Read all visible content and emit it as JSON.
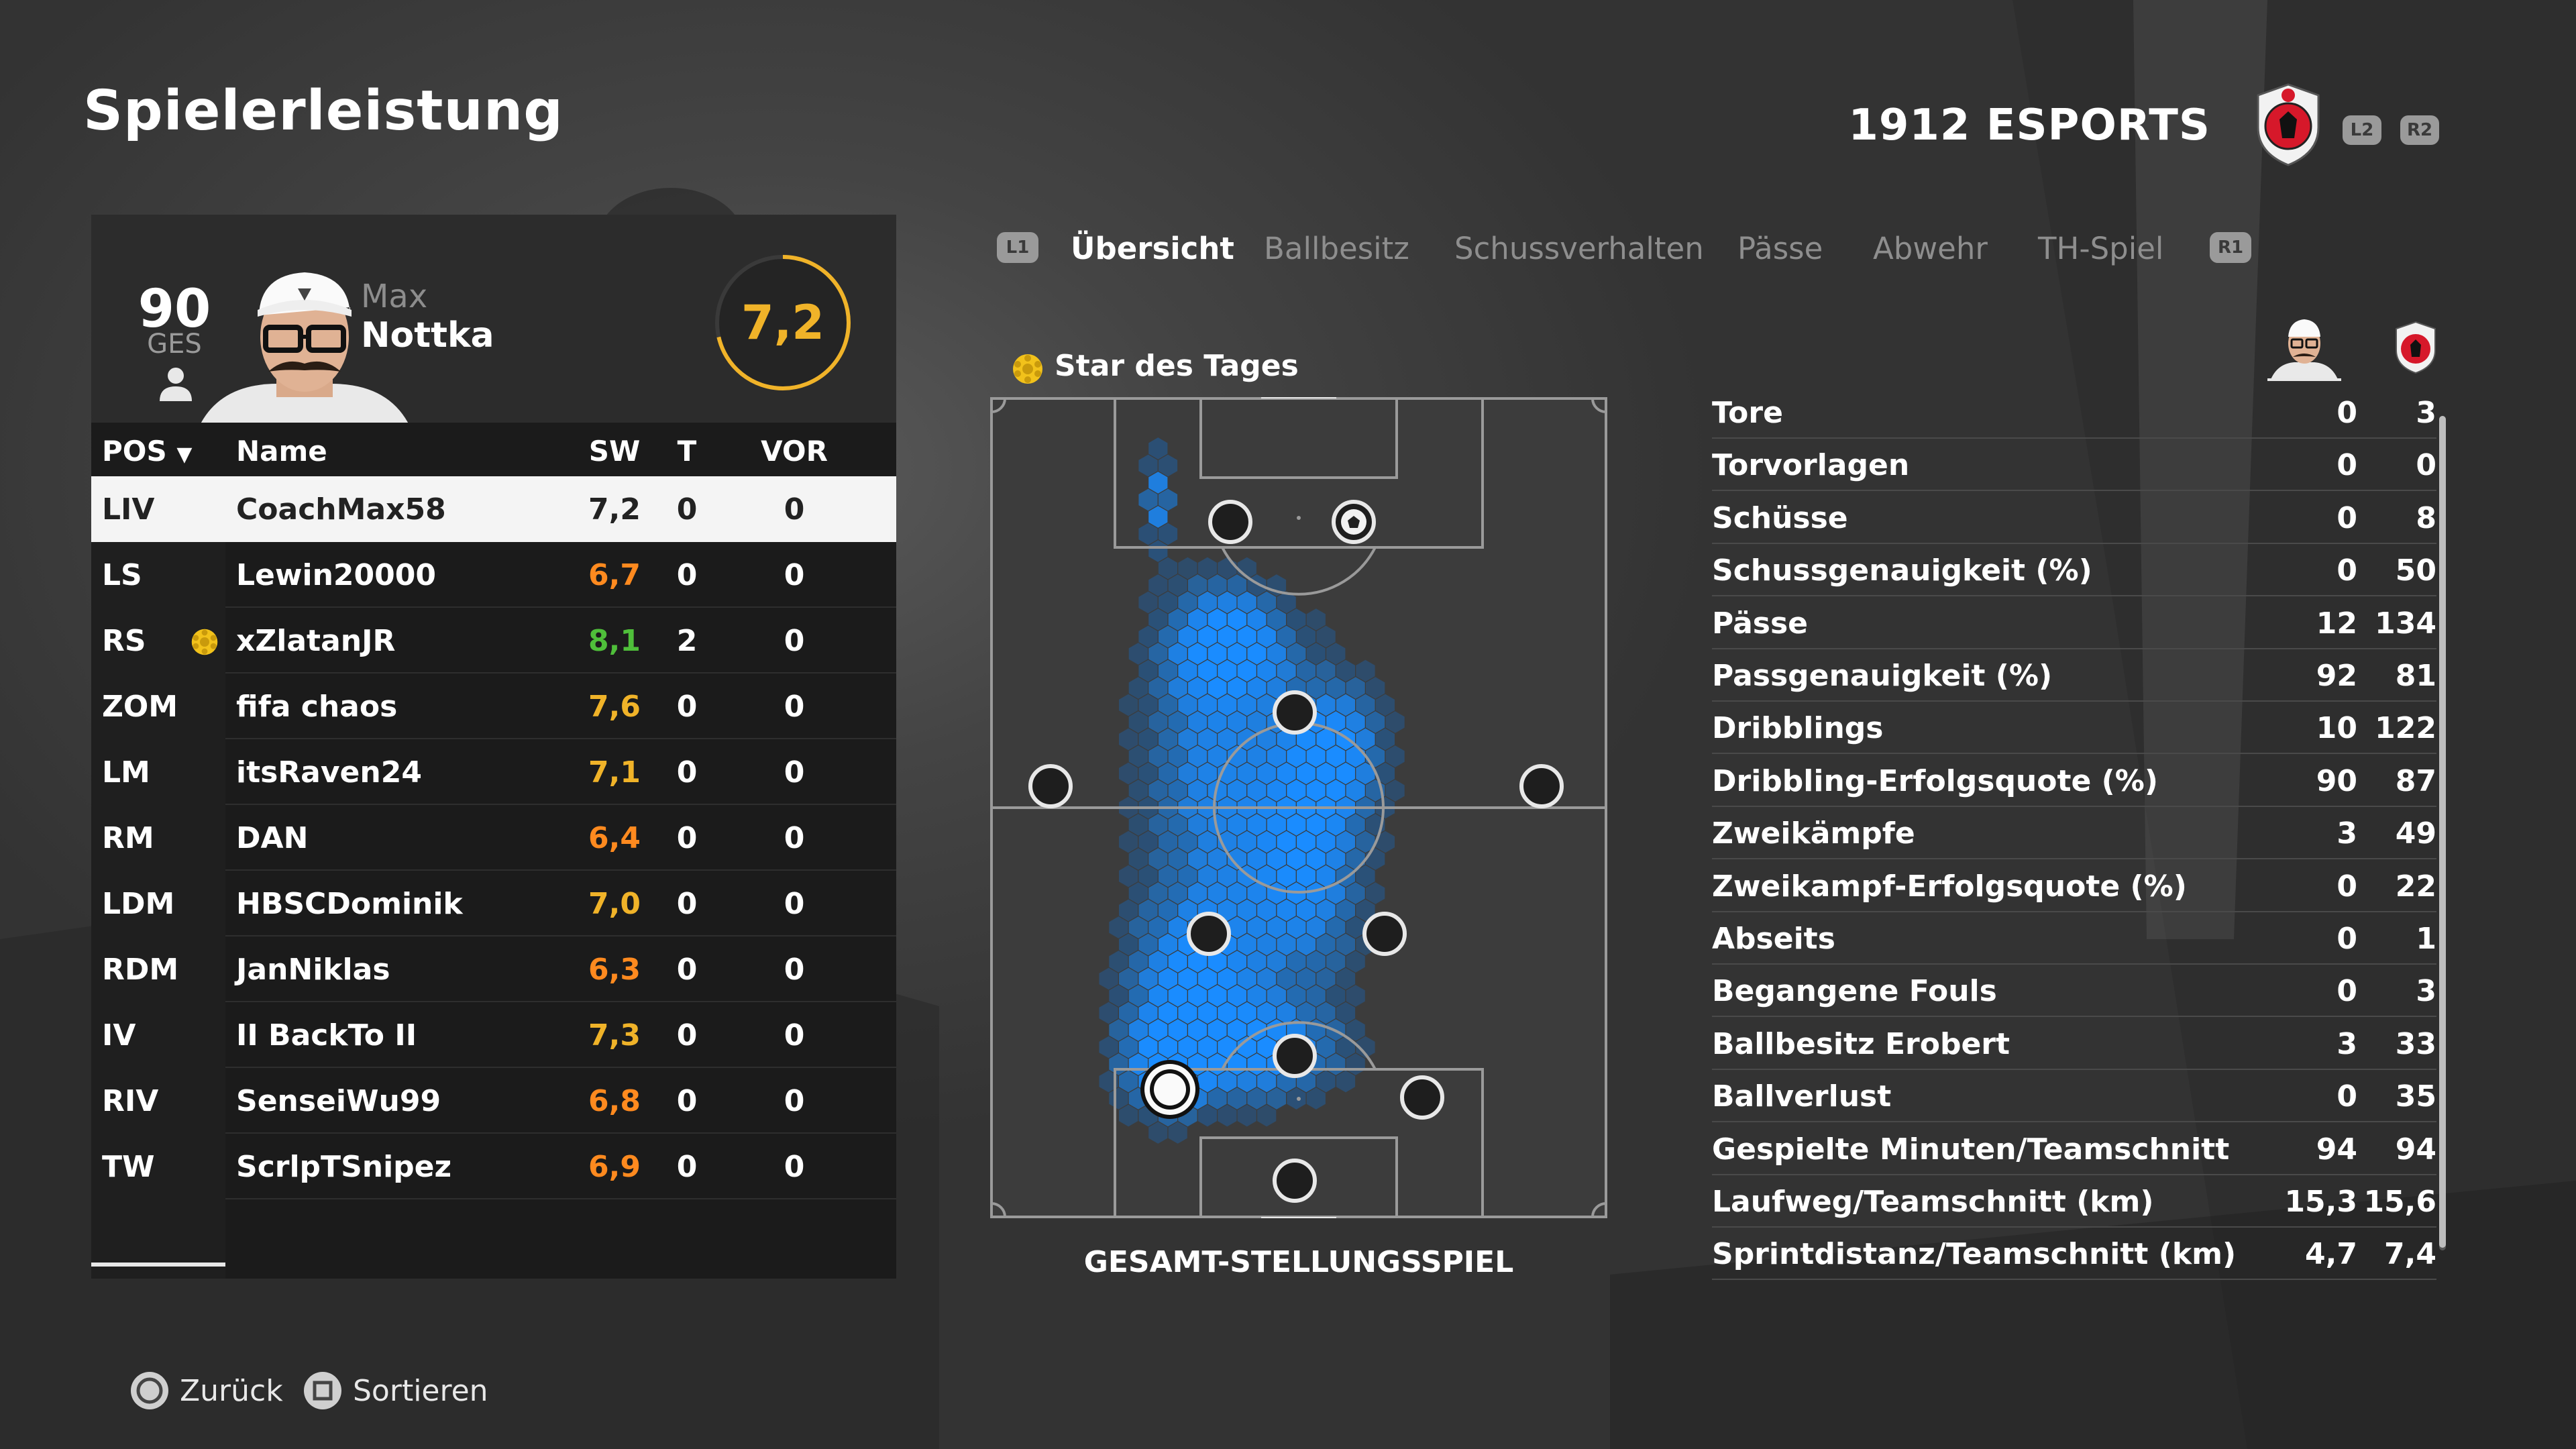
{
  "header": {
    "title": "Spielerleistung",
    "club_name": "1912 ESPORTS",
    "trigger_left": "L2",
    "trigger_right": "R2"
  },
  "player": {
    "overall": "90",
    "overall_label": "GES",
    "first_name": "Max",
    "last_name": "Nottka",
    "rating": "7,2"
  },
  "table": {
    "headers": {
      "pos": "POS",
      "name": "Name",
      "sw": "SW",
      "t": "T",
      "vor": "VOR"
    },
    "rows": [
      {
        "pos": "LIV",
        "name": "CoachMax58",
        "sw": "7,2",
        "t": "0",
        "vor": "0",
        "sw_color": "#222222",
        "selected": true
      },
      {
        "pos": "LS",
        "name": "Lewin20000",
        "sw": "6,7",
        "t": "0",
        "vor": "0",
        "sw_color": "#ff8a1f"
      },
      {
        "pos": "RS",
        "name": "xZlatanJR",
        "sw": "8,1",
        "t": "2",
        "vor": "0",
        "sw_color": "#4fbf3a",
        "star": true
      },
      {
        "pos": "ZOM",
        "name": "fifa chaos",
        "sw": "7,6",
        "t": "0",
        "vor": "0",
        "sw_color": "#f0b329"
      },
      {
        "pos": "LM",
        "name": "itsRaven24",
        "sw": "7,1",
        "t": "0",
        "vor": "0",
        "sw_color": "#f0b329"
      },
      {
        "pos": "RM",
        "name": "DAN",
        "sw": "6,4",
        "t": "0",
        "vor": "0",
        "sw_color": "#ff8a1f"
      },
      {
        "pos": "LDM",
        "name": "HBSCDominik",
        "sw": "7,0",
        "t": "0",
        "vor": "0",
        "sw_color": "#f0b329"
      },
      {
        "pos": "RDM",
        "name": "JanNiklas",
        "sw": "6,3",
        "t": "0",
        "vor": "0",
        "sw_color": "#ff8a1f"
      },
      {
        "pos": "IV",
        "name": "II BackTo II",
        "sw": "7,3",
        "t": "0",
        "vor": "0",
        "sw_color": "#f0b329"
      },
      {
        "pos": "RIV",
        "name": "SenseiWu99",
        "sw": "6,8",
        "t": "0",
        "vor": "0",
        "sw_color": "#ff8a1f"
      },
      {
        "pos": "TW",
        "name": "ScrlpTSnipez",
        "sw": "6,9",
        "t": "0",
        "vor": "0",
        "sw_color": "#ff8a1f"
      }
    ]
  },
  "tabs": {
    "left_trigger": "L1",
    "right_trigger": "R1",
    "items": [
      "Übersicht",
      "Ballbesitz",
      "Schussverhalten",
      "Pässe",
      "Abwehr",
      "TH-Spiel"
    ],
    "active": "Übersicht"
  },
  "pitch": {
    "star_label": "Star des Tages",
    "caption": "GESAMT-STELLUNGSSPIEL"
  },
  "stats": [
    {
      "label": "Tore",
      "player": "0",
      "team": "3"
    },
    {
      "label": "Torvorlagen",
      "player": "0",
      "team": "0"
    },
    {
      "label": "Schüsse",
      "player": "0",
      "team": "8"
    },
    {
      "label": "Schussgenauigkeit (%)",
      "player": "0",
      "team": "50"
    },
    {
      "label": "Pässe",
      "player": "12",
      "team": "134"
    },
    {
      "label": "Passgenauigkeit (%)",
      "player": "92",
      "team": "81"
    },
    {
      "label": "Dribblings",
      "player": "10",
      "team": "122"
    },
    {
      "label": "Dribbling-Erfolgsquote (%)",
      "player": "90",
      "team": "87"
    },
    {
      "label": "Zweikämpfe",
      "player": "3",
      "team": "49"
    },
    {
      "label": "Zweikampf-Erfolgsquote (%)",
      "player": "0",
      "team": "22"
    },
    {
      "label": "Abseits",
      "player": "0",
      "team": "1"
    },
    {
      "label": "Begangene Fouls",
      "player": "0",
      "team": "3"
    },
    {
      "label": "Ballbesitz Erobert",
      "player": "3",
      "team": "33"
    },
    {
      "label": "Ballverlust",
      "player": "0",
      "team": "35"
    },
    {
      "label": "Gespielte Minuten/Teamschnitt",
      "player": "94",
      "team": "94"
    },
    {
      "label": "Laufweg/Teamschnitt (km)",
      "player": "15,3",
      "team": "15,6"
    },
    {
      "label": "Sprintdistanz/Teamschnitt (km)",
      "player": "4,7",
      "team": "7,4"
    }
  ],
  "footer": {
    "back_label": "Zurück",
    "sort_label": "Sortieren"
  },
  "colors": {
    "rating_gold": "#f0b329",
    "rating_orange": "#ff8a1f",
    "rating_green": "#4fbf3a",
    "heatmap_blue": "#1a8cff",
    "club_red": "#d6182a"
  }
}
